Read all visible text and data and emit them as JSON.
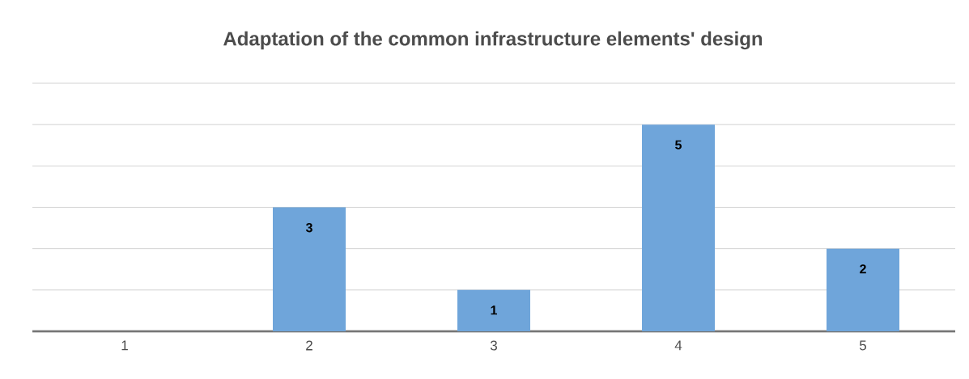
{
  "chart_data": {
    "type": "bar",
    "title": "Adaptation of the common infrastructure elements' design",
    "categories": [
      "1",
      "2",
      "3",
      "4",
      "5"
    ],
    "values": [
      0,
      3,
      1,
      5,
      2
    ],
    "value_labels": [
      null,
      "3",
      "1",
      "5",
      "2"
    ],
    "color": "#6fa5da",
    "ylim": [
      0,
      6
    ],
    "yticks": [
      {
        "value": 0,
        "label": null
      },
      {
        "value": 1,
        "label": null
      },
      {
        "value": 2,
        "label": null
      },
      {
        "value": 3,
        "label": null
      },
      {
        "value": 4,
        "label": null
      },
      {
        "value": 5,
        "label": null
      },
      {
        "value": 6,
        "label": null
      }
    ],
    "tick_labels": "x",
    "grid": "y"
  }
}
